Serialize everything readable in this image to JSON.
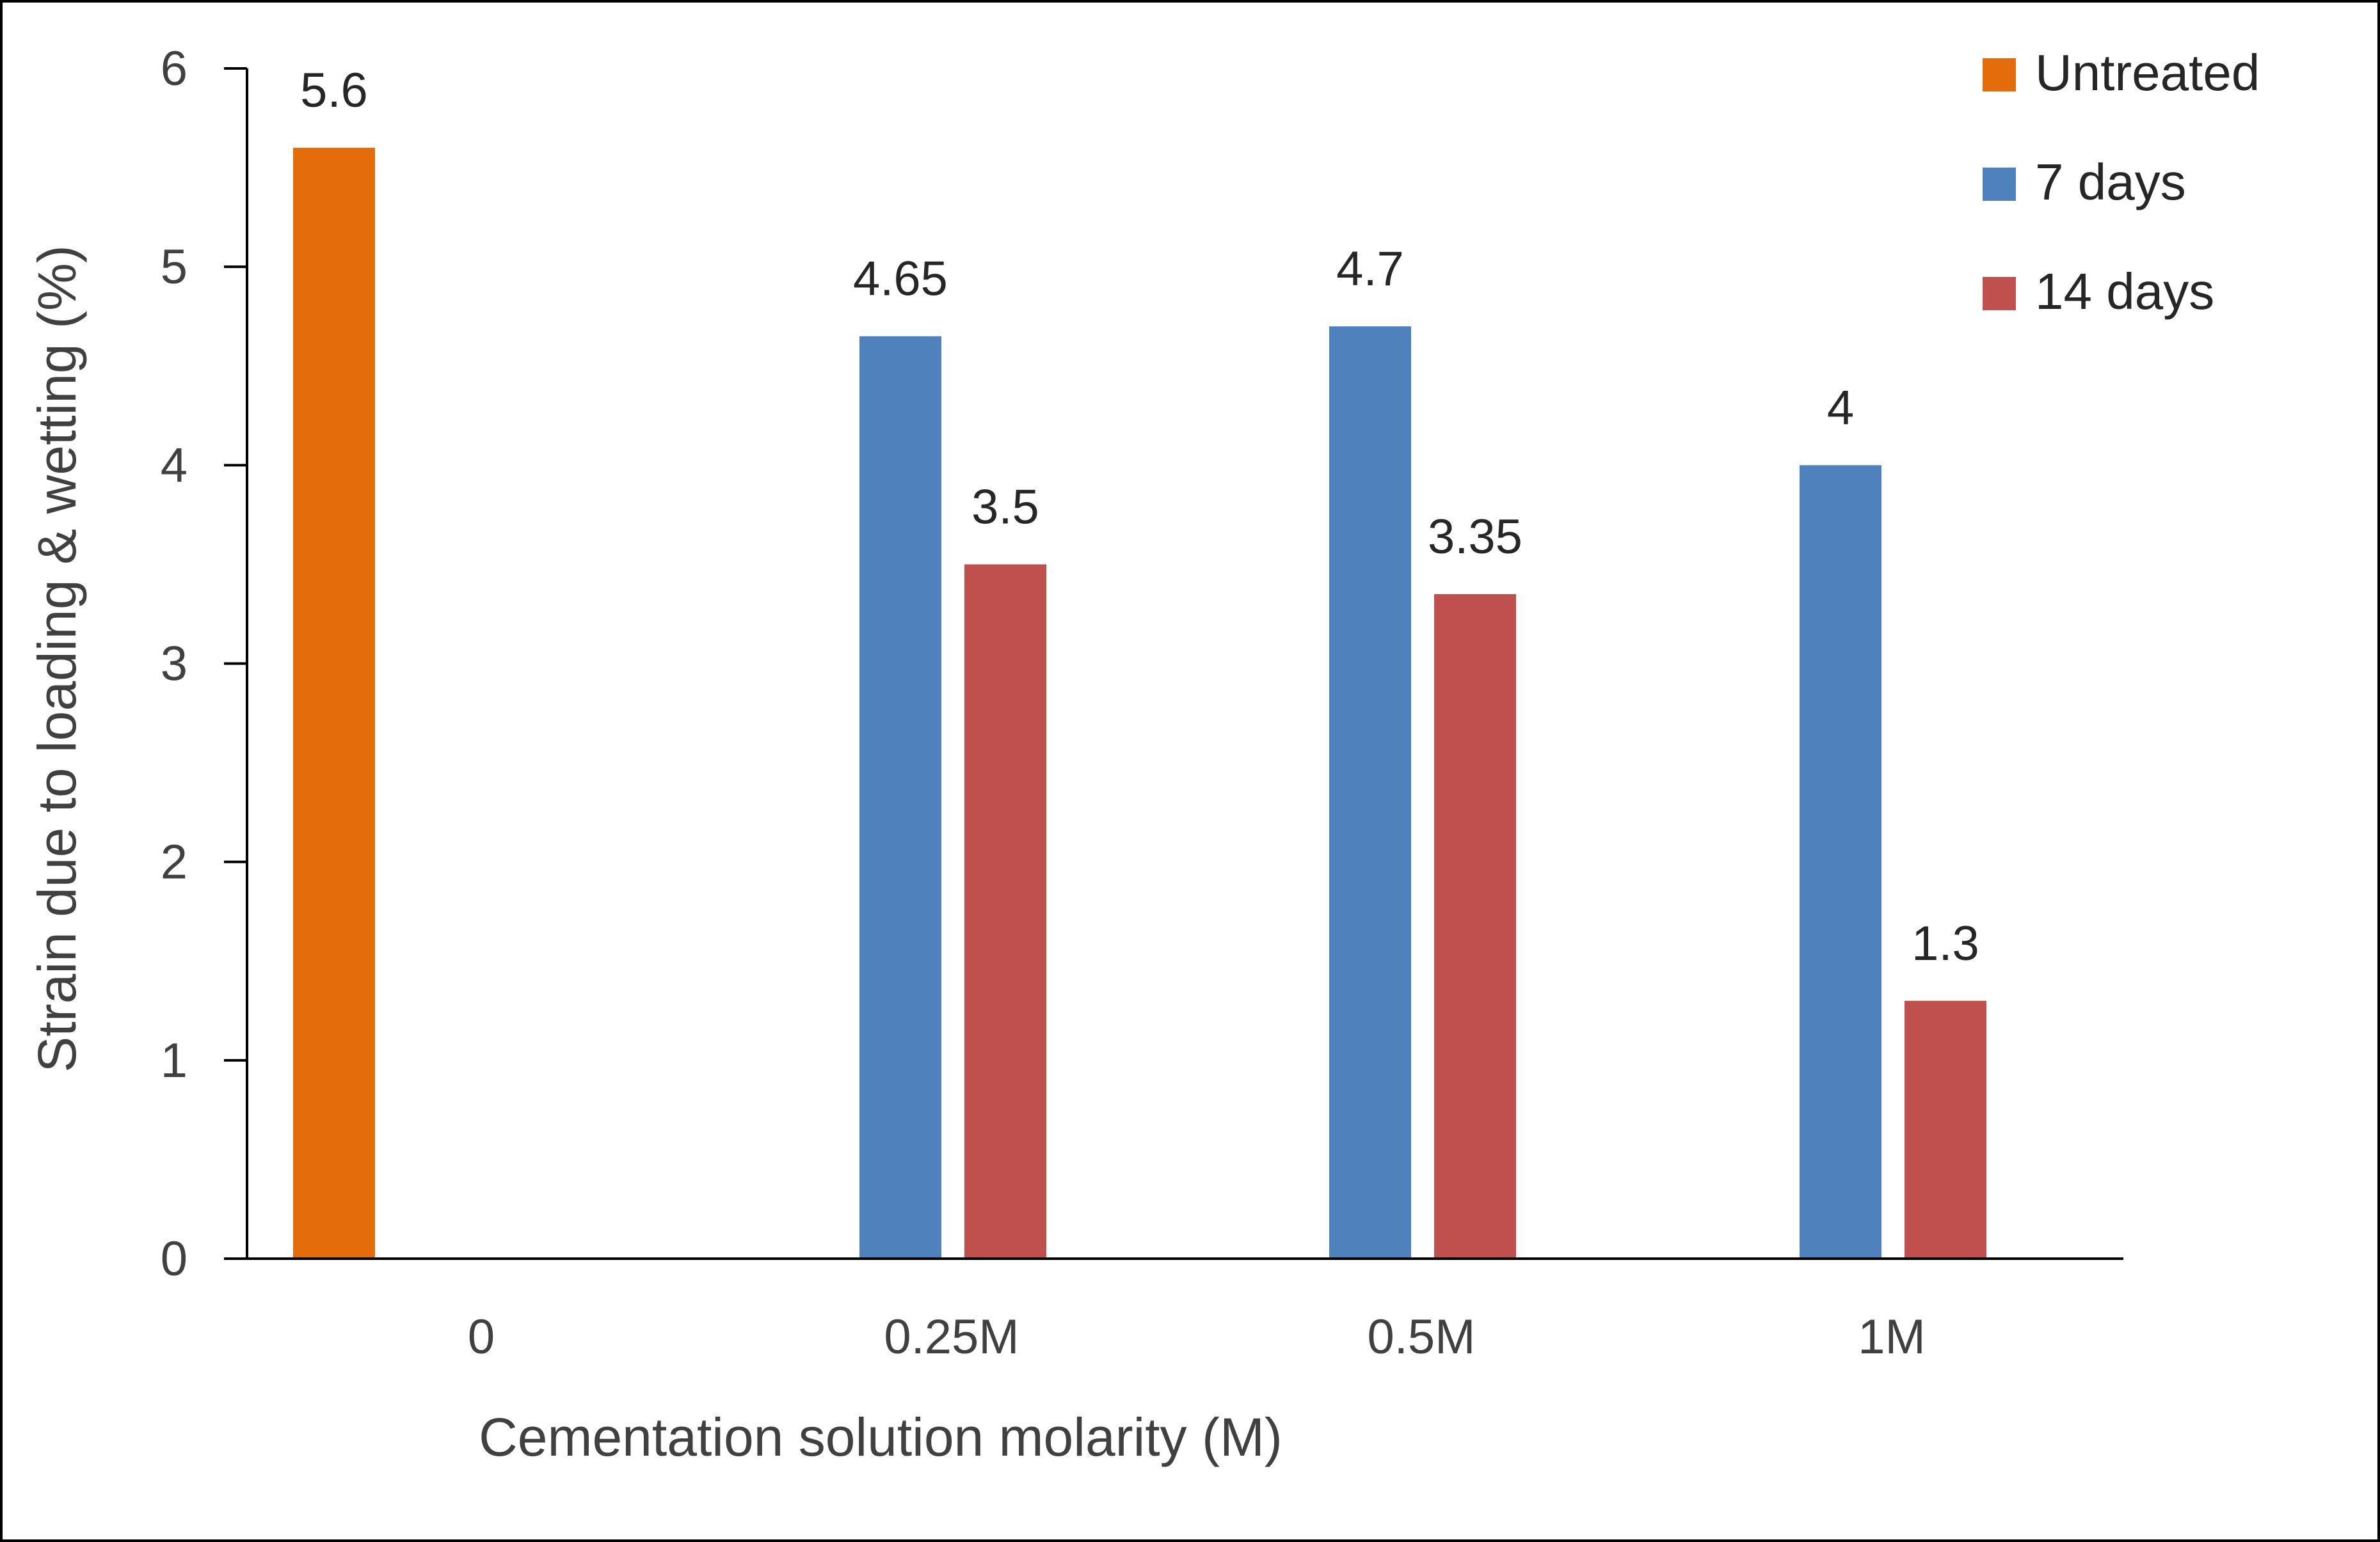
{
  "chart_data": {
    "type": "bar",
    "categories": [
      "0",
      "0.25M",
      "0.5M",
      "1M"
    ],
    "series": [
      {
        "name": "Untreated",
        "color": "#E46C0A",
        "values": [
          5.6,
          null,
          null,
          null
        ]
      },
      {
        "name": "7 days",
        "color": "#4F81BD",
        "values": [
          null,
          4.65,
          4.7,
          4.0
        ]
      },
      {
        "name": "14 days",
        "color": "#C0504D",
        "values": [
          null,
          3.5,
          3.35,
          1.3
        ]
      }
    ],
    "data_labels": [
      [
        "5.6",
        null,
        null,
        null
      ],
      [
        null,
        "4.65",
        "4.7",
        "4"
      ],
      [
        null,
        "3.5",
        "3.35",
        "1.3"
      ]
    ],
    "xlabel": "Cementation solution molarity (M)",
    "ylabel": "Strain due to loading & wetting (%)",
    "ylim": [
      0,
      6
    ],
    "yticks": [
      "0",
      "1",
      "2",
      "3",
      "4",
      "5",
      "6"
    ],
    "grid": false,
    "legend_position": "top-right"
  }
}
